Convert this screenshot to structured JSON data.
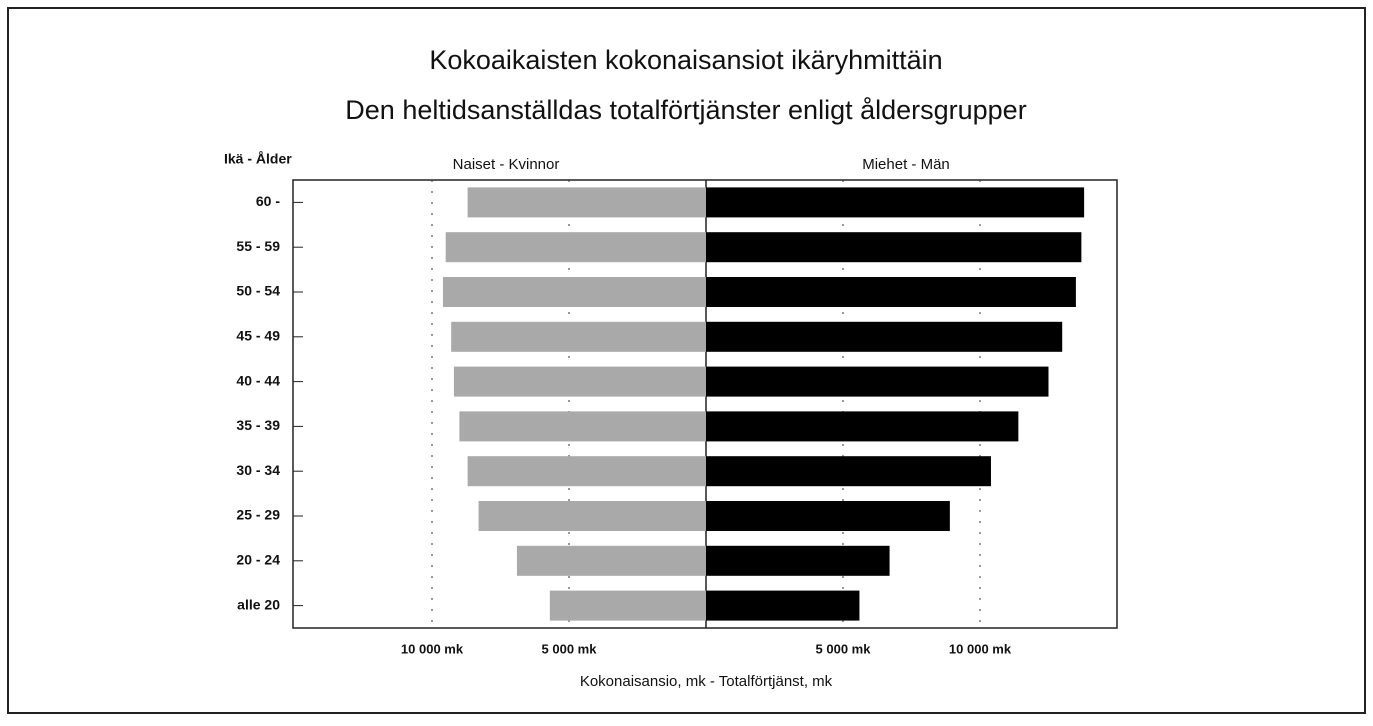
{
  "chart_data": {
    "type": "pyramid",
    "title": "Kokoaikaisten kokonaisansiot ikäryhmittäin",
    "subtitle": "Den heltidsanställdas totalförtjänster enligt åldersgrupper",
    "y_label": "Ikä - Ålder",
    "x_label": "Kokonaisansio, mk - Totalförtjänst, mk",
    "categories": [
      "60 -",
      "55 - 59",
      "50 - 54",
      "45 - 49",
      "40 - 44",
      "35 - 39",
      "30 - 34",
      "25 - 29",
      "20 - 24",
      "alle 20"
    ],
    "series": [
      {
        "name": "Naiset - Kvinnor",
        "color": "#a9a9a9",
        "side": "left",
        "values": [
          8700,
          9500,
          9600,
          9300,
          9200,
          9000,
          8700,
          8300,
          6900,
          5700
        ]
      },
      {
        "name": "Miehet - Män",
        "color": "#000000",
        "side": "right",
        "values": [
          13800,
          13700,
          13500,
          13000,
          12500,
          11400,
          10400,
          8900,
          6700,
          5600
        ]
      }
    ],
    "xlim": [
      0,
      15000
    ],
    "xticks": [
      {
        "value": 5000,
        "label": "5 000 mk"
      },
      {
        "value": 10000,
        "label": "10 000 mk"
      }
    ],
    "grid": true
  }
}
